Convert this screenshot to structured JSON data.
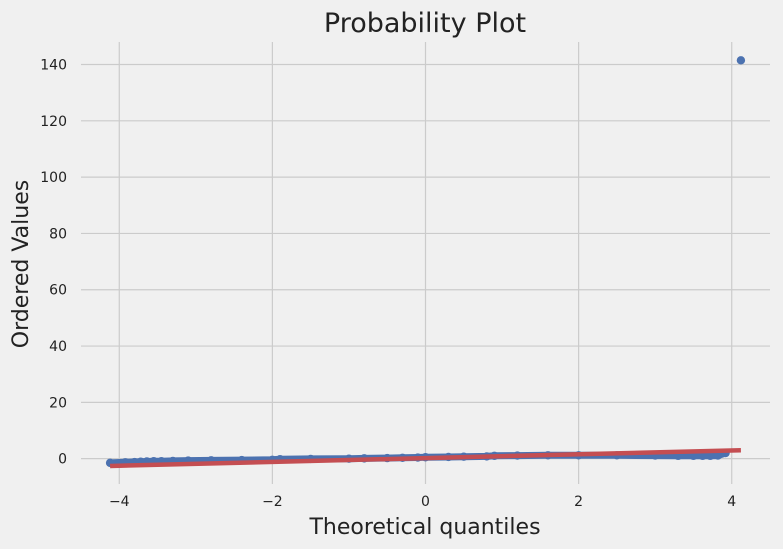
{
  "chart_data": {
    "type": "scatter",
    "title": "Probability Plot",
    "xlabel": "Theoretical quantiles",
    "ylabel": "Ordered Values",
    "xlim": [
      -4.5,
      4.5
    ],
    "ylim": [
      -9,
      148
    ],
    "xticks": [
      -4,
      -2,
      0,
      2,
      4
    ],
    "yticks": [
      0,
      20,
      40,
      60,
      80,
      100,
      120,
      140
    ],
    "xtick_labels": [
      "−4",
      "−2",
      "0",
      "2",
      "4"
    ],
    "ytick_labels": [
      "0",
      "20",
      "40",
      "60",
      "80",
      "100",
      "120",
      "140"
    ],
    "grid": true,
    "colors": {
      "background": "#f0f0f0",
      "grid": "#cbcbcb",
      "points": "#4c72b0",
      "fit_line": "#c44e52"
    },
    "series": [
      {
        "kind": "points",
        "x": [
          -4.12,
          -3.92,
          -3.8,
          -3.72,
          -3.64,
          -3.55,
          -3.45,
          -3.3,
          -3.1,
          -2.8,
          -2.4,
          -2.0,
          -1.9,
          -1.5,
          -1.0,
          -0.8,
          -0.5,
          -0.3,
          -0.1,
          0.0,
          0.3,
          0.5,
          0.8,
          0.9,
          1.2,
          1.6,
          2.0,
          2.5,
          3.0,
          3.3,
          3.5,
          3.62,
          3.72,
          3.82,
          3.92,
          4.12
        ],
        "y": [
          -1.5,
          -1.3,
          -1.2,
          -1.1,
          -1.0,
          -0.9,
          -0.9,
          -0.8,
          -0.7,
          -0.6,
          -0.5,
          -0.4,
          -0.2,
          -0.1,
          0.0,
          0.1,
          0.2,
          0.3,
          0.4,
          0.5,
          0.6,
          0.7,
          0.8,
          1.0,
          1.1,
          1.2,
          1.2,
          1.2,
          1.1,
          1.0,
          1.0,
          1.0,
          1.0,
          1.1,
          2.0,
          141.5
        ]
      },
      {
        "kind": "line",
        "x": [
          -4.12,
          4.12
        ],
        "y": [
          -2.6,
          3.0
        ]
      }
    ]
  }
}
